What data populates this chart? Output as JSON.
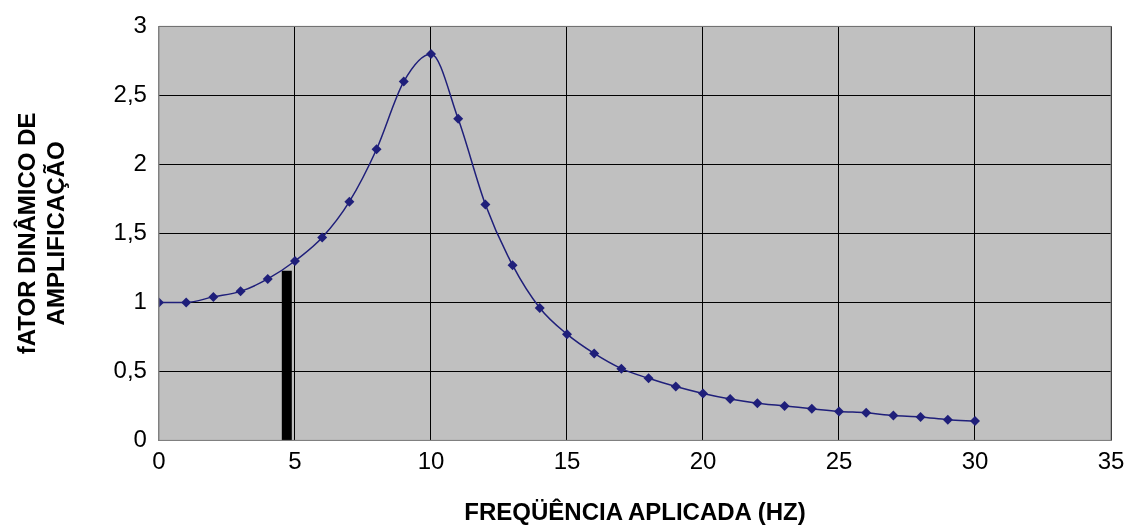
{
  "chart_data": {
    "type": "line",
    "xlabel": "FREQÜÊNCIA APLICADA (HZ)",
    "ylabel": "fATOR DINÂMICO DE\nAMPLIFICAÇÃO",
    "xlim": [
      0,
      35
    ],
    "xticks": [
      0,
      5,
      10,
      15,
      20,
      25,
      30,
      35
    ],
    "ylim": [
      0,
      3
    ],
    "yticks": [
      0,
      {
        "value": 0.5,
        "label": "0,5"
      },
      1,
      {
        "value": 1.5,
        "label": "1,5"
      },
      2,
      {
        "value": 2.5,
        "label": "2,5"
      },
      3
    ],
    "grid": true,
    "legend": false,
    "series": [
      {
        "color": "#1f1f7a",
        "marker": "diamond",
        "x": [
          0,
          1,
          2,
          3,
          4,
          5,
          6,
          7,
          8,
          9,
          10,
          11,
          12,
          13,
          14,
          15,
          16,
          17,
          18,
          19,
          20,
          21,
          22,
          23,
          24,
          25,
          26,
          27,
          28,
          29,
          30
        ],
        "values": [
          1.0,
          1.0,
          1.04,
          1.08,
          1.17,
          1.3,
          1.47,
          1.73,
          2.11,
          2.6,
          2.8,
          2.33,
          1.71,
          1.27,
          0.96,
          0.77,
          0.63,
          0.52,
          0.45,
          0.39,
          0.34,
          0.3,
          0.27,
          0.25,
          0.23,
          0.21,
          0.2,
          0.18,
          0.17,
          0.15,
          0.14
        ]
      },
      {
        "color": "#000000",
        "marker": "none",
        "x": [
          4.7,
          4.7
        ],
        "values": [
          0,
          1.23
        ]
      }
    ]
  }
}
